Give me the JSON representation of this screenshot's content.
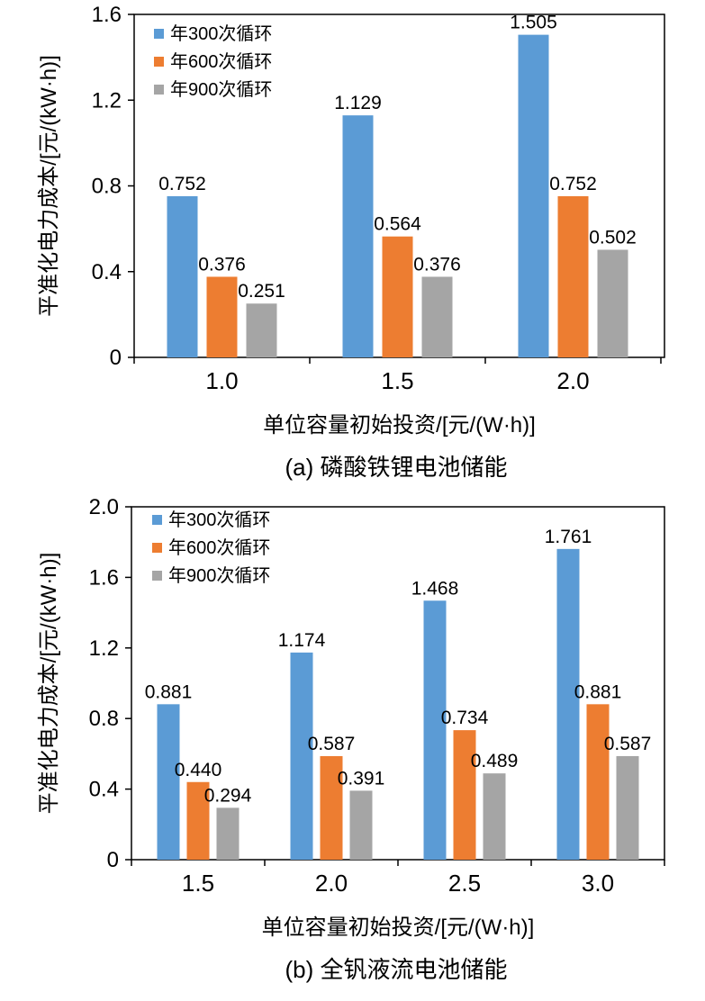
{
  "colors": {
    "series": [
      "#5b9bd5",
      "#ed7d31",
      "#a5a5a5"
    ],
    "axis": "#000000"
  },
  "chart_data": [
    {
      "type": "bar",
      "caption": "(a) 磷酸铁锂电池储能",
      "title": "",
      "xlabel": "单位容量初始投资/[元/(W·h)]",
      "ylabel": "平准化电力成本/[元/(kW·h)]",
      "ylim": [
        0,
        1.6
      ],
      "yticks": [
        "0",
        "0.4",
        "0.8",
        "1.2",
        "1.6"
      ],
      "categories": [
        "1.0",
        "1.5",
        "2.0"
      ],
      "legend_position": "top-left",
      "series": [
        {
          "name": "年300次循环",
          "values": [
            0.752,
            1.129,
            1.505
          ],
          "labels": [
            "0.752",
            "1.129",
            "1.505"
          ]
        },
        {
          "name": "年600次循环",
          "values": [
            0.376,
            0.564,
            0.752
          ],
          "labels": [
            "0.376",
            "0.564",
            "0.752"
          ]
        },
        {
          "name": "年900次循环",
          "values": [
            0.251,
            0.376,
            0.502
          ],
          "labels": [
            "0.251",
            "0.376",
            "0.502"
          ]
        }
      ]
    },
    {
      "type": "bar",
      "caption": "(b) 全钒液流电池储能",
      "title": "",
      "xlabel": "单位容量初始投资/[元/(W·h)]",
      "ylabel": "平准化电力成本/[元/(kW·h)]",
      "ylim": [
        0,
        2.0
      ],
      "yticks": [
        "0",
        "0.4",
        "0.8",
        "1.2",
        "1.6",
        "2.0"
      ],
      "categories": [
        "1.5",
        "2.0",
        "2.5",
        "3.0"
      ],
      "legend_position": "top-left",
      "series": [
        {
          "name": "年300次循环",
          "values": [
            0.881,
            1.174,
            1.468,
            1.761
          ],
          "labels": [
            "0.881",
            "1.174",
            "1.468",
            "1.761"
          ]
        },
        {
          "name": "年600次循环",
          "values": [
            0.44,
            0.587,
            0.734,
            0.881
          ],
          "labels": [
            "0.440",
            "0.587",
            "0.734",
            "0.881"
          ]
        },
        {
          "name": "年900次循环",
          "values": [
            0.294,
            0.391,
            0.489,
            0.587
          ],
          "labels": [
            "0.294",
            "0.391",
            "0.489",
            "0.587"
          ]
        }
      ]
    }
  ]
}
